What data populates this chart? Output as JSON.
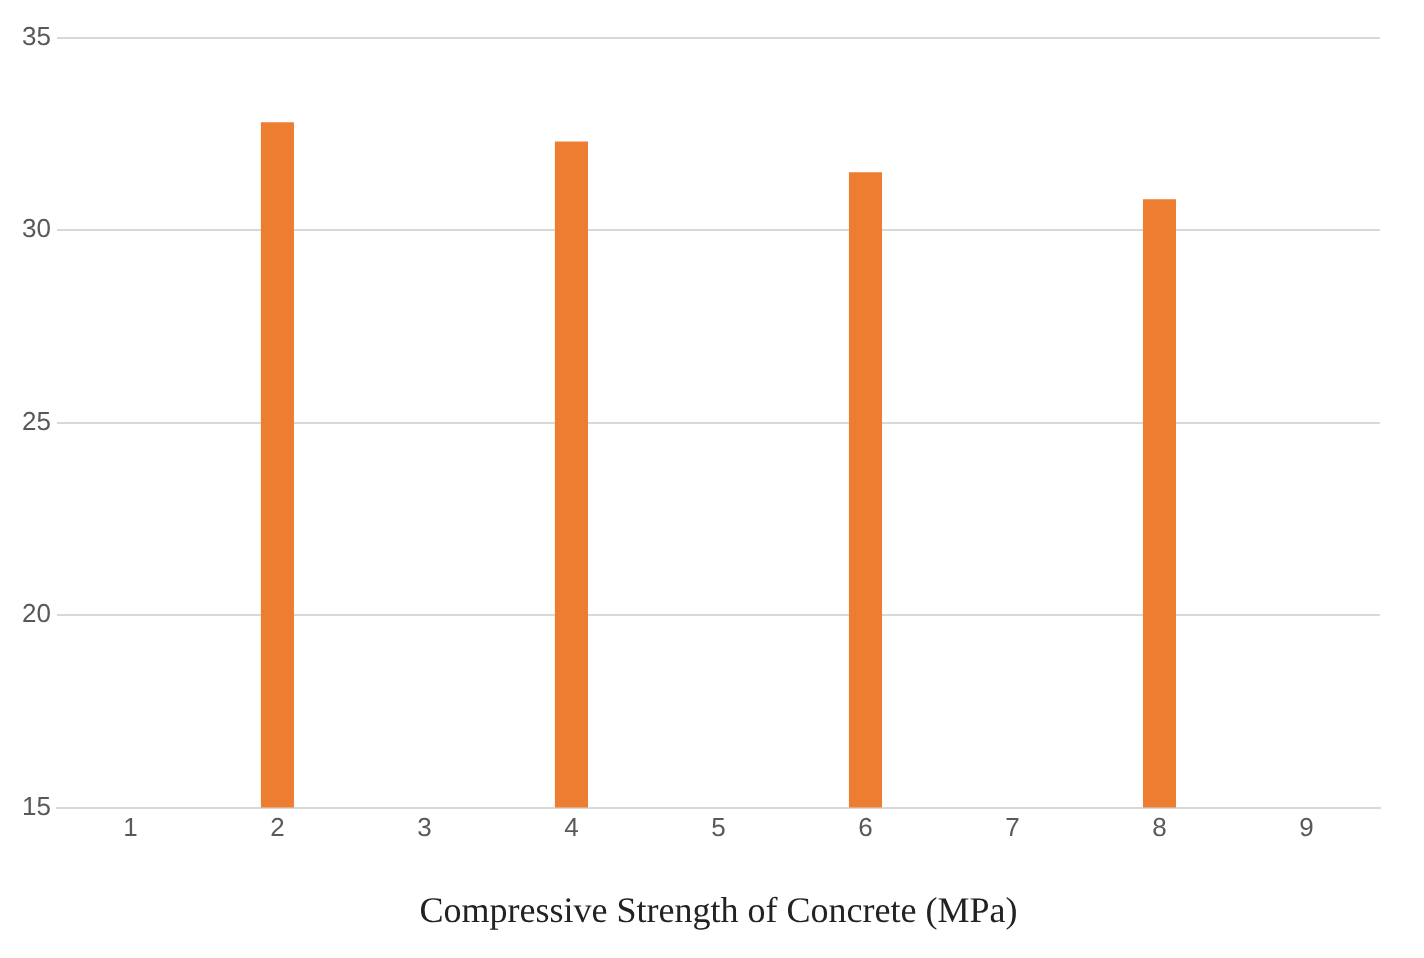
{
  "chart_data": {
    "type": "bar",
    "xlabel": "Compressive Strength of Concrete (MPa)",
    "categories": [
      "1",
      "2",
      "3",
      "4",
      "5",
      "6",
      "7",
      "8",
      "9"
    ],
    "values": [
      null,
      32.8,
      null,
      32.3,
      null,
      31.5,
      null,
      30.8,
      null
    ],
    "color": "#ed7d31",
    "ylim": [
      15,
      35
    ],
    "yticks": [
      15,
      20,
      25,
      30,
      35
    ],
    "grid": "y",
    "legend": false
  }
}
